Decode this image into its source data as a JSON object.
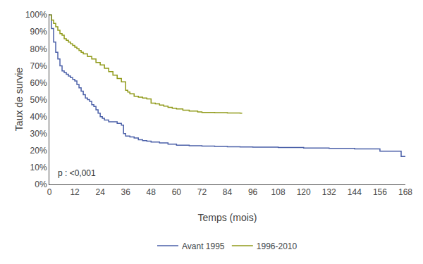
{
  "chart_data": {
    "type": "step",
    "xlabel": "Temps (mois)",
    "ylabel": "Taux de survie",
    "annotation": "p : <0,001",
    "xlim": [
      0,
      168
    ],
    "ylim": [
      0,
      1.005
    ],
    "xticks": [
      0,
      12,
      24,
      36,
      48,
      60,
      72,
      84,
      96,
      108,
      120,
      132,
      144,
      156,
      168
    ],
    "yticks": [
      {
        "value": 0,
        "label": "0%"
      },
      {
        "value": 0.1,
        "label": "10%"
      },
      {
        "value": 0.2,
        "label": "20%"
      },
      {
        "value": 0.3,
        "label": "30%"
      },
      {
        "value": 0.4,
        "label": "40%"
      },
      {
        "value": 0.5,
        "label": "50%"
      },
      {
        "value": 0.6,
        "label": "60%"
      },
      {
        "value": 0.7,
        "label": "70%"
      },
      {
        "value": 0.8,
        "label": "80%"
      },
      {
        "value": 0.9,
        "label": "90%"
      },
      {
        "value": 1.0,
        "label": "100%"
      }
    ],
    "grid": false,
    "legend": "bottom",
    "series": [
      {
        "name": "Avant 1995",
        "color": "#4a5fa8",
        "x": [
          0,
          1,
          2,
          3,
          4,
          5,
          6,
          7,
          8,
          9,
          10,
          11,
          12,
          13,
          14,
          15,
          16,
          17,
          18,
          19,
          20,
          21,
          22,
          23,
          24,
          25,
          26,
          27,
          28,
          30,
          32,
          34,
          35,
          36,
          37,
          38,
          40,
          42,
          44,
          46,
          48,
          52,
          56,
          60,
          66,
          72,
          78,
          84,
          90,
          96,
          108,
          120,
          132,
          144,
          156,
          166,
          168
        ],
        "values": [
          1.0,
          0.92,
          0.84,
          0.78,
          0.74,
          0.7,
          0.67,
          0.66,
          0.65,
          0.64,
          0.63,
          0.62,
          0.61,
          0.59,
          0.57,
          0.55,
          0.53,
          0.51,
          0.5,
          0.49,
          0.47,
          0.46,
          0.44,
          0.42,
          0.4,
          0.39,
          0.38,
          0.38,
          0.37,
          0.37,
          0.36,
          0.35,
          0.3,
          0.285,
          0.285,
          0.28,
          0.274,
          0.264,
          0.258,
          0.255,
          0.25,
          0.245,
          0.238,
          0.232,
          0.228,
          0.226,
          0.224,
          0.222,
          0.221,
          0.22,
          0.218,
          0.215,
          0.213,
          0.21,
          0.196,
          0.165,
          0.165
        ]
      },
      {
        "name": "1996-2010",
        "color": "#909a1a",
        "x": [
          0,
          1,
          2,
          3,
          4,
          5,
          6,
          7,
          8,
          9,
          10,
          11,
          12,
          13,
          14,
          15,
          16,
          18,
          20,
          22,
          24,
          26,
          28,
          30,
          32,
          34,
          36,
          37,
          38,
          40,
          42,
          44,
          46,
          48,
          50,
          52,
          54,
          56,
          58,
          60,
          63,
          66,
          70,
          72,
          78,
          84,
          90,
          91
        ],
        "values": [
          1.0,
          0.97,
          0.95,
          0.93,
          0.91,
          0.89,
          0.88,
          0.86,
          0.85,
          0.84,
          0.83,
          0.82,
          0.81,
          0.8,
          0.79,
          0.78,
          0.77,
          0.755,
          0.74,
          0.72,
          0.705,
          0.685,
          0.665,
          0.645,
          0.625,
          0.605,
          0.555,
          0.545,
          0.535,
          0.52,
          0.515,
          0.51,
          0.505,
          0.48,
          0.475,
          0.468,
          0.462,
          0.455,
          0.45,
          0.445,
          0.438,
          0.433,
          0.428,
          0.425,
          0.424,
          0.422,
          0.42,
          0.42
        ]
      }
    ]
  }
}
